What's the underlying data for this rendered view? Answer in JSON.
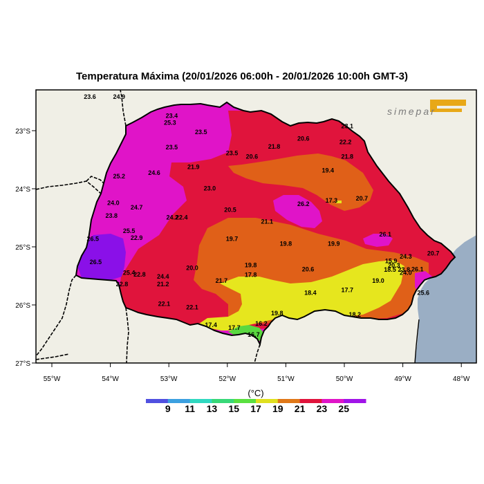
{
  "title": "Temperatura Máxima (20/01/2026 06:00h - 20/01/2026 10:00h GMT-3)",
  "brand": "simepar",
  "lon_ticks": [
    "55°W",
    "54°W",
    "53°W",
    "52°W",
    "51°W",
    "50°W",
    "49°W",
    "48°W"
  ],
  "lat_ticks": [
    "23°S",
    "24°S",
    "25°S",
    "26°S",
    "27°S"
  ],
  "legend": {
    "unit": "(°C)",
    "labels": [
      "9",
      "11",
      "13",
      "15",
      "17",
      "19",
      "21",
      "23",
      "25"
    ],
    "colors": [
      "#5050e0",
      "#3ca0e0",
      "#30d8c0",
      "#38d878",
      "#5ae040",
      "#e0e020",
      "#e07818",
      "#e0143c",
      "#e014c8",
      "#a014e8"
    ]
  },
  "colors": {
    "land": "#f0efe6",
    "ocean": "#9aaec4",
    "gt_25": "#e014c8",
    "t_23_25": "#e0143c",
    "t_21_23": "#e06018",
    "t_19_21": "#e6e61e",
    "t_17_19": "#5ad840",
    "t_violet": "#8a10e8"
  },
  "station_values": [
    {
      "value": "23.6",
      "lon": -54.35,
      "lat": -22.45
    },
    {
      "value": "24.9",
      "lon": -53.85,
      "lat": -22.45
    },
    {
      "value": "23.4",
      "lon": -52.95,
      "lat": -22.78
    },
    {
      "value": "25.3",
      "lon": -52.98,
      "lat": -22.9
    },
    {
      "value": "23.5",
      "lon": -52.45,
      "lat": -23.06
    },
    {
      "value": "23.1",
      "lon": -49.95,
      "lat": -22.96
    },
    {
      "value": "20.6",
      "lon": -50.7,
      "lat": -23.17
    },
    {
      "value": "22.2",
      "lon": -49.98,
      "lat": -23.23
    },
    {
      "value": "23.5",
      "lon": -52.95,
      "lat": -23.32
    },
    {
      "value": "21.8",
      "lon": -51.2,
      "lat": -23.31
    },
    {
      "value": "23.5",
      "lon": -51.92,
      "lat": -23.42
    },
    {
      "value": "20.6",
      "lon": -51.58,
      "lat": -23.48
    },
    {
      "value": "21.8",
      "lon": -49.95,
      "lat": -23.48
    },
    {
      "value": "21.9",
      "lon": -52.58,
      "lat": -23.66
    },
    {
      "value": "19.4",
      "lon": -50.28,
      "lat": -23.72
    },
    {
      "value": "24.6",
      "lon": -53.25,
      "lat": -23.76
    },
    {
      "value": "25.2",
      "lon": -53.85,
      "lat": -23.82
    },
    {
      "value": "23.0",
      "lon": -52.3,
      "lat": -24.03
    },
    {
      "value": "17.3",
      "lon": -50.22,
      "lat": -24.24
    },
    {
      "value": "20.7",
      "lon": -49.7,
      "lat": -24.2
    },
    {
      "value": "24.0",
      "lon": -53.95,
      "lat": -24.28
    },
    {
      "value": "26.2",
      "lon": -50.7,
      "lat": -24.3
    },
    {
      "value": "24.7",
      "lon": -53.55,
      "lat": -24.36
    },
    {
      "value": "20.5",
      "lon": -51.95,
      "lat": -24.4
    },
    {
      "value": "23.8",
      "lon": -53.98,
      "lat": -24.5
    },
    {
      "value": "24.2",
      "lon": -52.94,
      "lat": -24.53
    },
    {
      "value": "22.4",
      "lon": -52.78,
      "lat": -24.53
    },
    {
      "value": "21.1",
      "lon": -51.32,
      "lat": -24.6
    },
    {
      "value": "25.5",
      "lon": -53.68,
      "lat": -24.76
    },
    {
      "value": "26.1",
      "lon": -49.3,
      "lat": -24.82
    },
    {
      "value": "26.5",
      "lon": -54.3,
      "lat": -24.9
    },
    {
      "value": "22.9",
      "lon": -53.55,
      "lat": -24.88
    },
    {
      "value": "19.7",
      "lon": -51.92,
      "lat": -24.9
    },
    {
      "value": "19.8",
      "lon": -51.0,
      "lat": -24.98
    },
    {
      "value": "19.9",
      "lon": -50.18,
      "lat": -24.98
    },
    {
      "value": "24.3",
      "lon": -48.95,
      "lat": -25.2
    },
    {
      "value": "20.7",
      "lon": -48.48,
      "lat": -25.15
    },
    {
      "value": "15.9",
      "lon": -49.2,
      "lat": -25.28
    },
    {
      "value": "26.5",
      "lon": -54.25,
      "lat": -25.3
    },
    {
      "value": "20.3",
      "lon": -49.15,
      "lat": -25.36
    },
    {
      "value": "19.8",
      "lon": -51.6,
      "lat": -25.35
    },
    {
      "value": "23.8",
      "lon": -48.98,
      "lat": -25.43
    },
    {
      "value": "26.1",
      "lon": -48.75,
      "lat": -25.42
    },
    {
      "value": "18.5",
      "lon": -49.22,
      "lat": -25.43
    },
    {
      "value": "20.0",
      "lon": -52.6,
      "lat": -25.4
    },
    {
      "value": "20.6",
      "lon": -50.62,
      "lat": -25.42
    },
    {
      "value": "25.4",
      "lon": -53.68,
      "lat": -25.48
    },
    {
      "value": "22.8",
      "lon": -53.5,
      "lat": -25.51
    },
    {
      "value": "24.0",
      "lon": -48.95,
      "lat": -25.48
    },
    {
      "value": "17.8",
      "lon": -51.6,
      "lat": -25.52
    },
    {
      "value": "24.4",
      "lon": -53.1,
      "lat": -25.55
    },
    {
      "value": "19.0",
      "lon": -49.42,
      "lat": -25.62
    },
    {
      "value": "21.7",
      "lon": -52.1,
      "lat": -25.62
    },
    {
      "value": "22.8",
      "lon": -53.8,
      "lat": -25.68
    },
    {
      "value": "21.2",
      "lon": -53.1,
      "lat": -25.68
    },
    {
      "value": "17.7",
      "lon": -49.95,
      "lat": -25.78
    },
    {
      "value": "18.4",
      "lon": -50.58,
      "lat": -25.83
    },
    {
      "value": "25.6",
      "lon": -48.65,
      "lat": -25.83
    },
    {
      "value": "22.1",
      "lon": -53.08,
      "lat": -26.02
    },
    {
      "value": "22.1",
      "lon": -52.6,
      "lat": -26.08
    },
    {
      "value": "19.8",
      "lon": -51.15,
      "lat": -26.18
    },
    {
      "value": "18.2",
      "lon": -49.82,
      "lat": -26.2
    },
    {
      "value": "17.4",
      "lon": -52.28,
      "lat": -26.38
    },
    {
      "value": "16.2",
      "lon": -51.42,
      "lat": -26.36
    },
    {
      "value": "17.7",
      "lon": -51.88,
      "lat": -26.43
    },
    {
      "value": "16.7",
      "lon": -51.55,
      "lat": -26.55
    }
  ]
}
